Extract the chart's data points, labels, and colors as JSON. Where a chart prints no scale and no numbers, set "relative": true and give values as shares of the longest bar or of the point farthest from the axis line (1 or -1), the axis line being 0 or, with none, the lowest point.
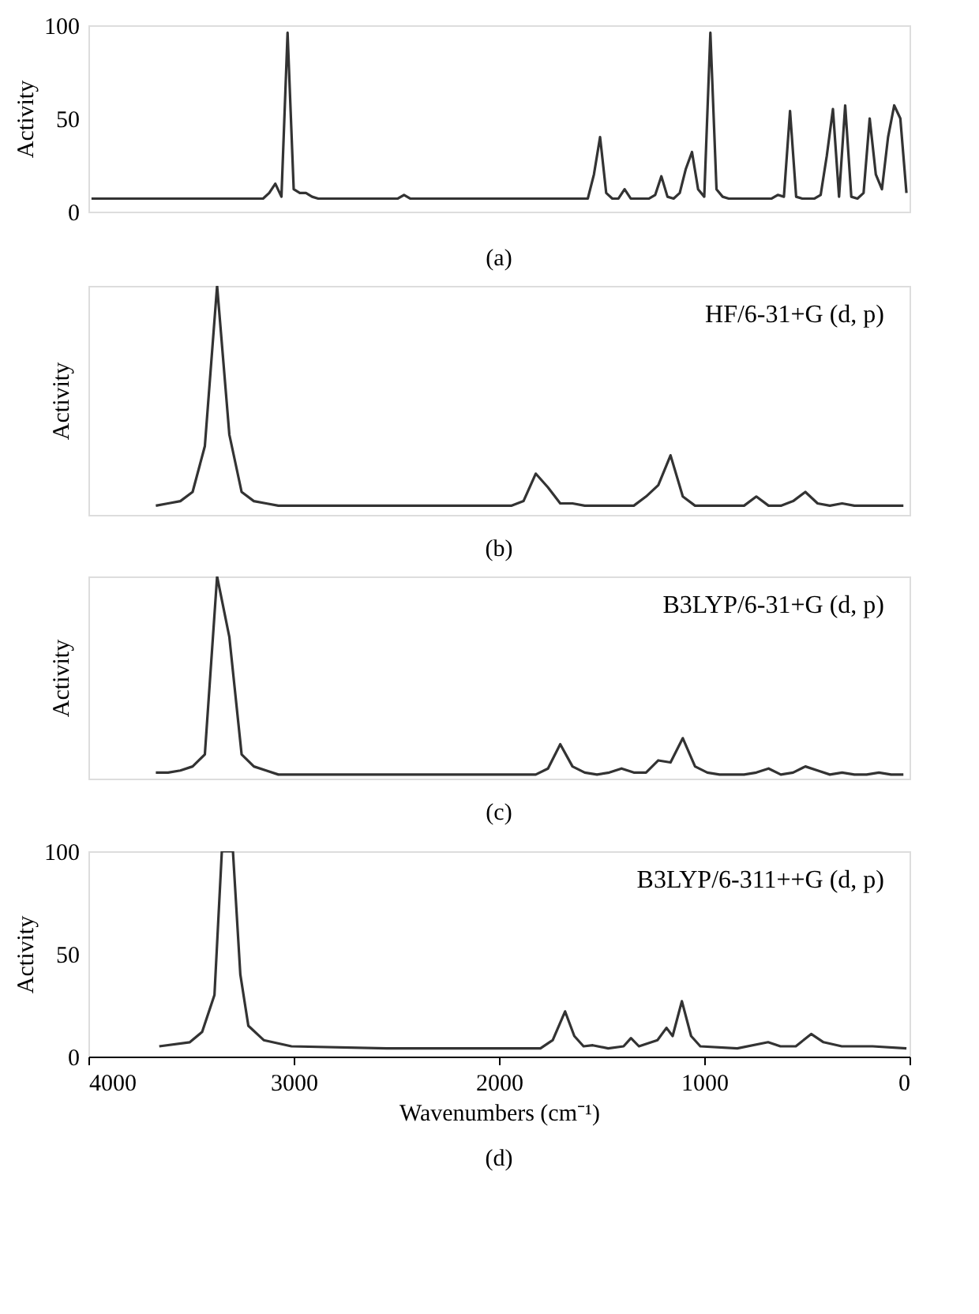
{
  "chart_data": [
    {
      "type": "line",
      "title": "(a)",
      "ylabel": "Activity",
      "ylim": [
        0,
        100
      ],
      "yticks": [
        0,
        50,
        100
      ],
      "tick_labels": "y",
      "categories": [
        null,
        null,
        null,
        null,
        null,
        null,
        null,
        null,
        null,
        null,
        null,
        null,
        null,
        null,
        null,
        null,
        null,
        null,
        null,
        null,
        null,
        null,
        null,
        null,
        null,
        null,
        null,
        null,
        null,
        null,
        null,
        null,
        null,
        null,
        null,
        null,
        null,
        null,
        null,
        null,
        null,
        null,
        null,
        null,
        null,
        null,
        null,
        null,
        null,
        null,
        null,
        null,
        null,
        null,
        null,
        null,
        null,
        null,
        null,
        null,
        null,
        null,
        null,
        null,
        null,
        null,
        null,
        null,
        null,
        null,
        null,
        null,
        null,
        null,
        null,
        null,
        null,
        null,
        null,
        null,
        null,
        null,
        null,
        null,
        null,
        null,
        null,
        null,
        null,
        null,
        null,
        null,
        null,
        null,
        null,
        null,
        null,
        null,
        null,
        null,
        null,
        null,
        null,
        null,
        null,
        null,
        null,
        null,
        null,
        null,
        null,
        null,
        null,
        null,
        null,
        null,
        null,
        null,
        null,
        null,
        null,
        null,
        null,
        null,
        null,
        null,
        null,
        null,
        null,
        null,
        null,
        null,
        null,
        null
      ],
      "series": [
        {
          "color": "#333333",
          "values": [
            7,
            7,
            7,
            7,
            7,
            7,
            7,
            7,
            7,
            7,
            7,
            7,
            7,
            7,
            7,
            7,
            7,
            7,
            7,
            7,
            7,
            7,
            7,
            7,
            7,
            7,
            7,
            7,
            7,
            10,
            15,
            8,
            96,
            12,
            10,
            10,
            8,
            7,
            7,
            7,
            7,
            7,
            7,
            7,
            7,
            7,
            7,
            7,
            7,
            7,
            7,
            9,
            7,
            7,
            7,
            7,
            7,
            7,
            7,
            7,
            7,
            7,
            7,
            7,
            7,
            7,
            7,
            7,
            7,
            7,
            7,
            7,
            7,
            7,
            7,
            7,
            7,
            7,
            7,
            7,
            7,
            7,
            20,
            40,
            10,
            7,
            7,
            12,
            7,
            7,
            7,
            7,
            9,
            19,
            8,
            7,
            10,
            23,
            32,
            12,
            8,
            96,
            12,
            8,
            7,
            7,
            7,
            7,
            7,
            7,
            7,
            7,
            9,
            8,
            54,
            8,
            7,
            7,
            7,
            9,
            30,
            55,
            8,
            57,
            8,
            7,
            10,
            50,
            20,
            12,
            40,
            57,
            50,
            10
          ]
        }
      ]
    },
    {
      "type": "line",
      "title": "(b)",
      "ylabel": "Activity",
      "relative": true,
      "tick_labels": false,
      "annotations": [
        "HF/6-31+G (d, p)"
      ],
      "categories": [
        null,
        null,
        null,
        null,
        null,
        null,
        null,
        null,
        null,
        null,
        null,
        null,
        null,
        null,
        null,
        null,
        null,
        null,
        null,
        null,
        null,
        null,
        null,
        null,
        null,
        null,
        null,
        null,
        null,
        null,
        null,
        null,
        null,
        null,
        null,
        null,
        null,
        null,
        null,
        null,
        null,
        null,
        null,
        null,
        null,
        null,
        null,
        null,
        null,
        null,
        null,
        null,
        null,
        null,
        null,
        null,
        null,
        null,
        null,
        null,
        null,
        null,
        null,
        null,
        null,
        null,
        null
      ],
      "series": [
        {
          "color": "#333333",
          "values": [
            null,
            null,
            null,
            null,
            null,
            0.04,
            0.05,
            0.06,
            0.1,
            0.3,
            1,
            0.35,
            0.1,
            0.06,
            0.05,
            0.04,
            0.04,
            0.04,
            0.04,
            0.04,
            0.04,
            0.04,
            0.04,
            0.04,
            0.04,
            0.04,
            0.04,
            0.04,
            0.04,
            0.04,
            0.04,
            0.04,
            0.04,
            0.04,
            0.04,
            0.06,
            0.18,
            0.12,
            0.05,
            0.05,
            0.04,
            0.04,
            0.04,
            0.04,
            0.04,
            0.08,
            0.13,
            0.26,
            0.08,
            0.04,
            0.04,
            0.04,
            0.04,
            0.04,
            0.08,
            0.04,
            0.04,
            0.06,
            0.1,
            0.05,
            0.04,
            0.05,
            0.04,
            0.04,
            0.04,
            0.04,
            0.04
          ]
        }
      ]
    },
    {
      "type": "line",
      "title": "(c)",
      "ylabel": "Activity",
      "relative": true,
      "tick_labels": false,
      "annotations": [
        "B3LYP/6-31+G (d, p)"
      ],
      "categories": [
        null,
        null,
        null,
        null,
        null,
        null,
        null,
        null,
        null,
        null,
        null,
        null,
        null,
        null,
        null,
        null,
        null,
        null,
        null,
        null,
        null,
        null,
        null,
        null,
        null,
        null,
        null,
        null,
        null,
        null,
        null,
        null,
        null,
        null,
        null,
        null,
        null,
        null,
        null,
        null,
        null,
        null,
        null,
        null,
        null,
        null,
        null,
        null,
        null,
        null,
        null,
        null,
        null,
        null,
        null,
        null,
        null,
        null,
        null,
        null,
        null,
        null,
        null,
        null,
        null,
        null,
        null
      ],
      "series": [
        {
          "color": "#333333",
          "values": [
            null,
            null,
            null,
            null,
            null,
            0.03,
            0.03,
            0.04,
            0.06,
            0.12,
            1,
            0.7,
            0.12,
            0.06,
            0.04,
            0.02,
            0.02,
            0.02,
            0.02,
            0.02,
            0.02,
            0.02,
            0.02,
            0.02,
            0.02,
            0.02,
            0.02,
            0.02,
            0.02,
            0.02,
            0.02,
            0.02,
            0.02,
            0.02,
            0.02,
            0.02,
            0.02,
            0.05,
            0.17,
            0.06,
            0.03,
            0.02,
            0.03,
            0.05,
            0.03,
            0.03,
            0.09,
            0.08,
            0.2,
            0.06,
            0.03,
            0.02,
            0.02,
            0.02,
            0.03,
            0.05,
            0.02,
            0.03,
            0.06,
            0.04,
            0.02,
            0.03,
            0.02,
            0.02,
            0.03,
            0.02,
            0.02
          ]
        }
      ]
    },
    {
      "type": "line",
      "title": "(d)",
      "xlabel": "Wavenumbers (cm⁻¹)",
      "ylabel": "Activity",
      "xlim": [
        4000,
        0
      ],
      "xticks": [
        4000,
        3000,
        2000,
        1000,
        0
      ],
      "ylim": [
        0,
        100
      ],
      "yticks": [
        0,
        50,
        100
      ],
      "annotations": [
        "B3LYP/6-311++G (d, p)"
      ],
      "x": [
        3655,
        3506,
        3446,
        3386,
        3350,
        3296,
        3260,
        3221,
        3146,
        3011,
        2547,
        1948,
        1798,
        1738,
        1678,
        1633,
        1588,
        1543,
        1468,
        1393,
        1357,
        1318,
        1228,
        1184,
        1154,
        1109,
        1064,
        1019,
        839,
        689,
        629,
        554,
        479,
        419,
        330,
        255,
        180,
        15
      ],
      "series": [
        {
          "color": "#333333",
          "values": [
            5,
            7,
            12,
            30,
            100,
            100,
            40,
            15,
            8,
            5,
            4,
            4,
            4,
            8,
            22,
            10,
            5,
            5.5,
            4,
            5,
            9,
            5,
            8,
            14,
            10,
            27,
            10,
            5,
            4,
            7,
            5,
            5,
            11,
            7,
            5,
            5,
            5,
            4
          ]
        }
      ]
    }
  ]
}
